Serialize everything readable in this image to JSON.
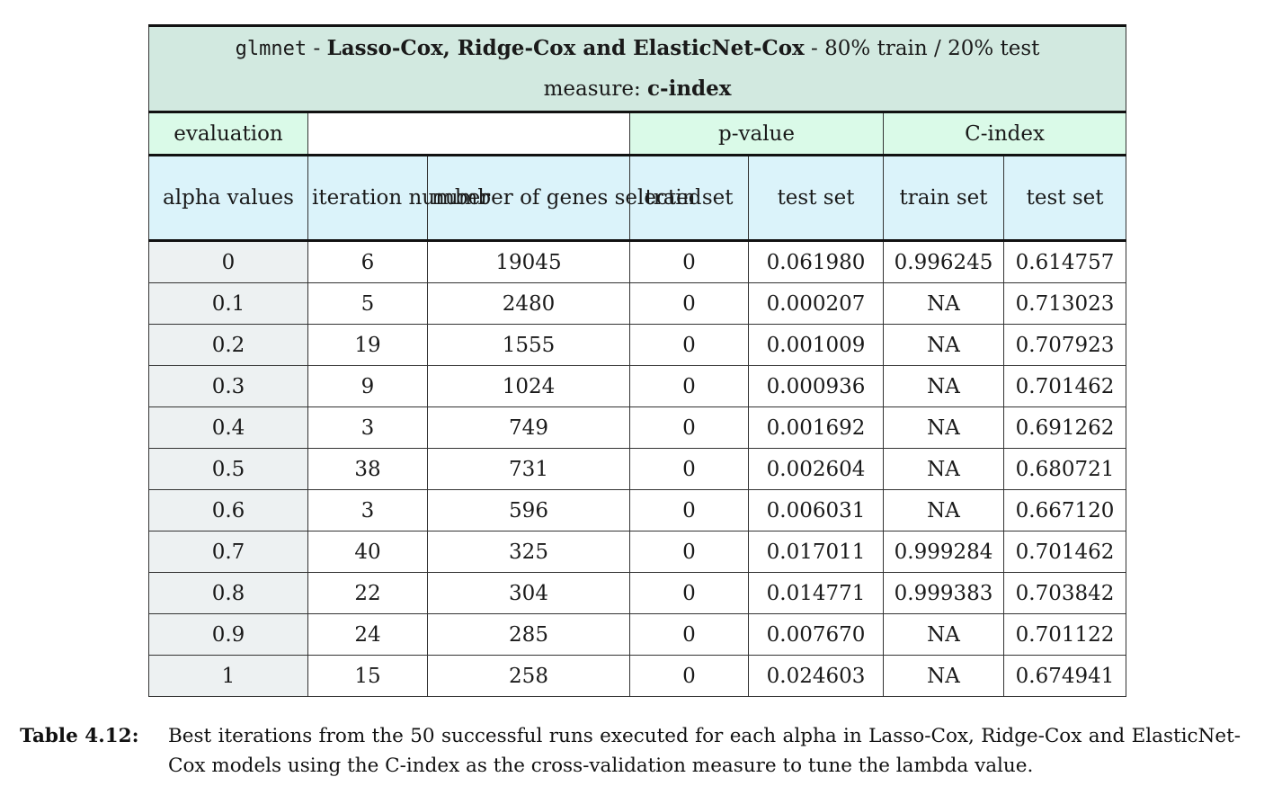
{
  "table": {
    "title": {
      "mono": "glmnet",
      "sep1": " - ",
      "bold_models": "Lasso-Cox, Ridge-Cox and ElasticNet-Cox",
      "sep2": " - ",
      "split": "80% train / 20% test",
      "measure_label": "measure: ",
      "measure_value": "c-index"
    },
    "group_headers": {
      "evaluation": "evaluation",
      "p_value": "p-value",
      "c_index": "C-index"
    },
    "columns": [
      "alpha values",
      "iteration number",
      "number of genes selected",
      "train set",
      "test set",
      "train set",
      "test set"
    ],
    "rows": [
      [
        "0",
        "6",
        "19045",
        "0",
        "0.061980",
        "0.996245",
        "0.614757"
      ],
      [
        "0.1",
        "5",
        "2480",
        "0",
        "0.000207",
        "NA",
        "0.713023"
      ],
      [
        "0.2",
        "19",
        "1555",
        "0",
        "0.001009",
        "NA",
        "0.707923"
      ],
      [
        "0.3",
        "9",
        "1024",
        "0",
        "0.000936",
        "NA",
        "0.701462"
      ],
      [
        "0.4",
        "3",
        "749",
        "0",
        "0.001692",
        "NA",
        "0.691262"
      ],
      [
        "0.5",
        "38",
        "731",
        "0",
        "0.002604",
        "NA",
        "0.680721"
      ],
      [
        "0.6",
        "3",
        "596",
        "0",
        "0.006031",
        "NA",
        "0.667120"
      ],
      [
        "0.7",
        "40",
        "325",
        "0",
        "0.017011",
        "0.999284",
        "0.701462"
      ],
      [
        "0.8",
        "22",
        "304",
        "0",
        "0.014771",
        "0.999383",
        "0.703842"
      ],
      [
        "0.9",
        "24",
        "285",
        "0",
        "0.007670",
        "NA",
        "0.701122"
      ],
      [
        "1",
        "15",
        "258",
        "0",
        "0.024603",
        "NA",
        "0.674941"
      ]
    ],
    "highlight": {
      "row": 1,
      "col": 4
    }
  },
  "caption": {
    "label": "Table 4.12:",
    "text": "Best iterations from the 50 successful runs executed for each alpha in Lasso-Cox, Ridge-Cox and ElasticNet-Cox models using the C-index as the cross-validation measure to tune the lambda value."
  },
  "colors": {
    "title_bg": "#d2e9e0",
    "group_bg": "#dafae8",
    "header_bg": "#dbf3fa",
    "alpha_col_bg": "#edf1f2"
  }
}
